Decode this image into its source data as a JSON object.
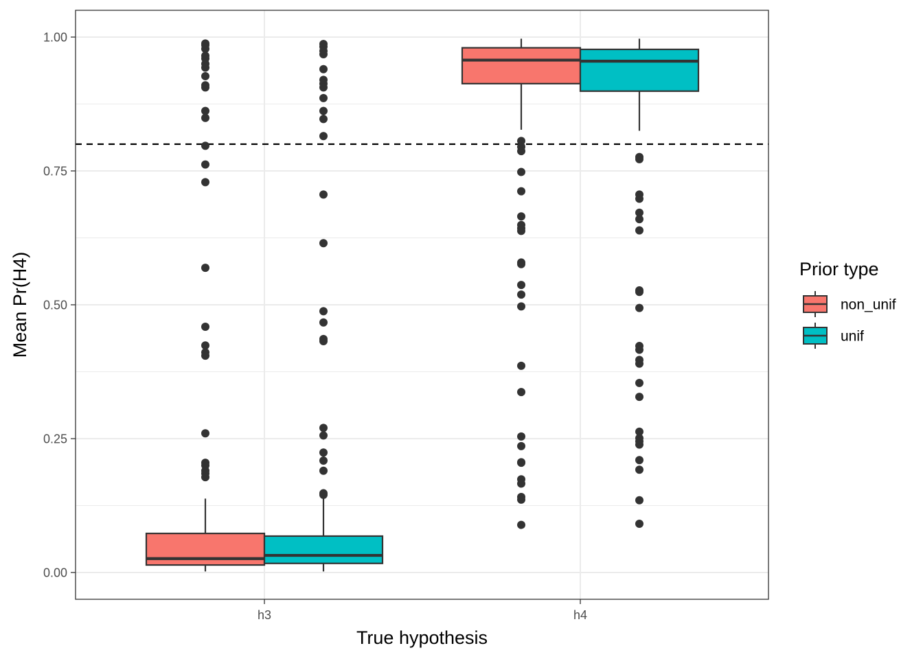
{
  "chart_data": {
    "type": "boxplot",
    "xlabel": "True hypothesis",
    "ylabel": "Mean Pr(H4)",
    "categories": [
      "h3",
      "h4"
    ],
    "ylim": [
      -0.05,
      1.05
    ],
    "yticks": [
      0.0,
      0.25,
      0.5,
      0.75,
      1.0
    ],
    "ytick_labels": [
      "0.00",
      "0.25",
      "0.50",
      "0.75",
      "1.00"
    ],
    "reference_line": {
      "y": 0.8,
      "style": "dashed",
      "color": "#000000"
    },
    "grid": true,
    "legend": {
      "title": "Prior type",
      "placement": "right"
    },
    "series": [
      {
        "name": "non_unif",
        "color": "#F8766D",
        "boxes": [
          {
            "category": "h3",
            "whisker_low": 0.002,
            "q1": 0.014,
            "median": 0.026,
            "q3": 0.073,
            "whisker_high": 0.138,
            "outliers": [
              0.988,
              0.985,
              0.978,
              0.965,
              0.96,
              0.95,
              0.943,
              0.927,
              0.91,
              0.906,
              0.862,
              0.849,
              0.797,
              0.762,
              0.729,
              0.569,
              0.459,
              0.424,
              0.411,
              0.405,
              0.26,
              0.205,
              0.2,
              0.19,
              0.185,
              0.178
            ]
          },
          {
            "category": "h4",
            "whisker_low": 0.827,
            "q1": 0.913,
            "median": 0.957,
            "q3": 0.98,
            "whisker_high": 0.997,
            "outliers": [
              0.806,
              0.795,
              0.787,
              0.748,
              0.712,
              0.665,
              0.649,
              0.643,
              0.638,
              0.579,
              0.576,
              0.537,
              0.519,
              0.497,
              0.386,
              0.337,
              0.254,
              0.236,
              0.206,
              0.205,
              0.174,
              0.166,
              0.141,
              0.136,
              0.089
            ]
          }
        ]
      },
      {
        "name": "unif",
        "color": "#00BFC4",
        "boxes": [
          {
            "category": "h3",
            "whisker_low": 0.002,
            "q1": 0.017,
            "median": 0.032,
            "q3": 0.068,
            "whisker_high": 0.14,
            "outliers": [
              0.987,
              0.982,
              0.974,
              0.968,
              0.94,
              0.92,
              0.913,
              0.906,
              0.886,
              0.862,
              0.847,
              0.815,
              0.706,
              0.615,
              0.488,
              0.467,
              0.436,
              0.432,
              0.27,
              0.256,
              0.224,
              0.209,
              0.19,
              0.148,
              0.145
            ]
          },
          {
            "category": "h4",
            "whisker_low": 0.825,
            "q1": 0.899,
            "median": 0.955,
            "q3": 0.977,
            "whisker_high": 0.997,
            "outliers": [
              0.776,
              0.772,
              0.706,
              0.698,
              0.672,
              0.66,
              0.639,
              0.527,
              0.524,
              0.494,
              0.423,
              0.416,
              0.397,
              0.39,
              0.354,
              0.328,
              0.263,
              0.251,
              0.245,
              0.239,
              0.21,
              0.192,
              0.135,
              0.091
            ]
          }
        ]
      }
    ]
  }
}
